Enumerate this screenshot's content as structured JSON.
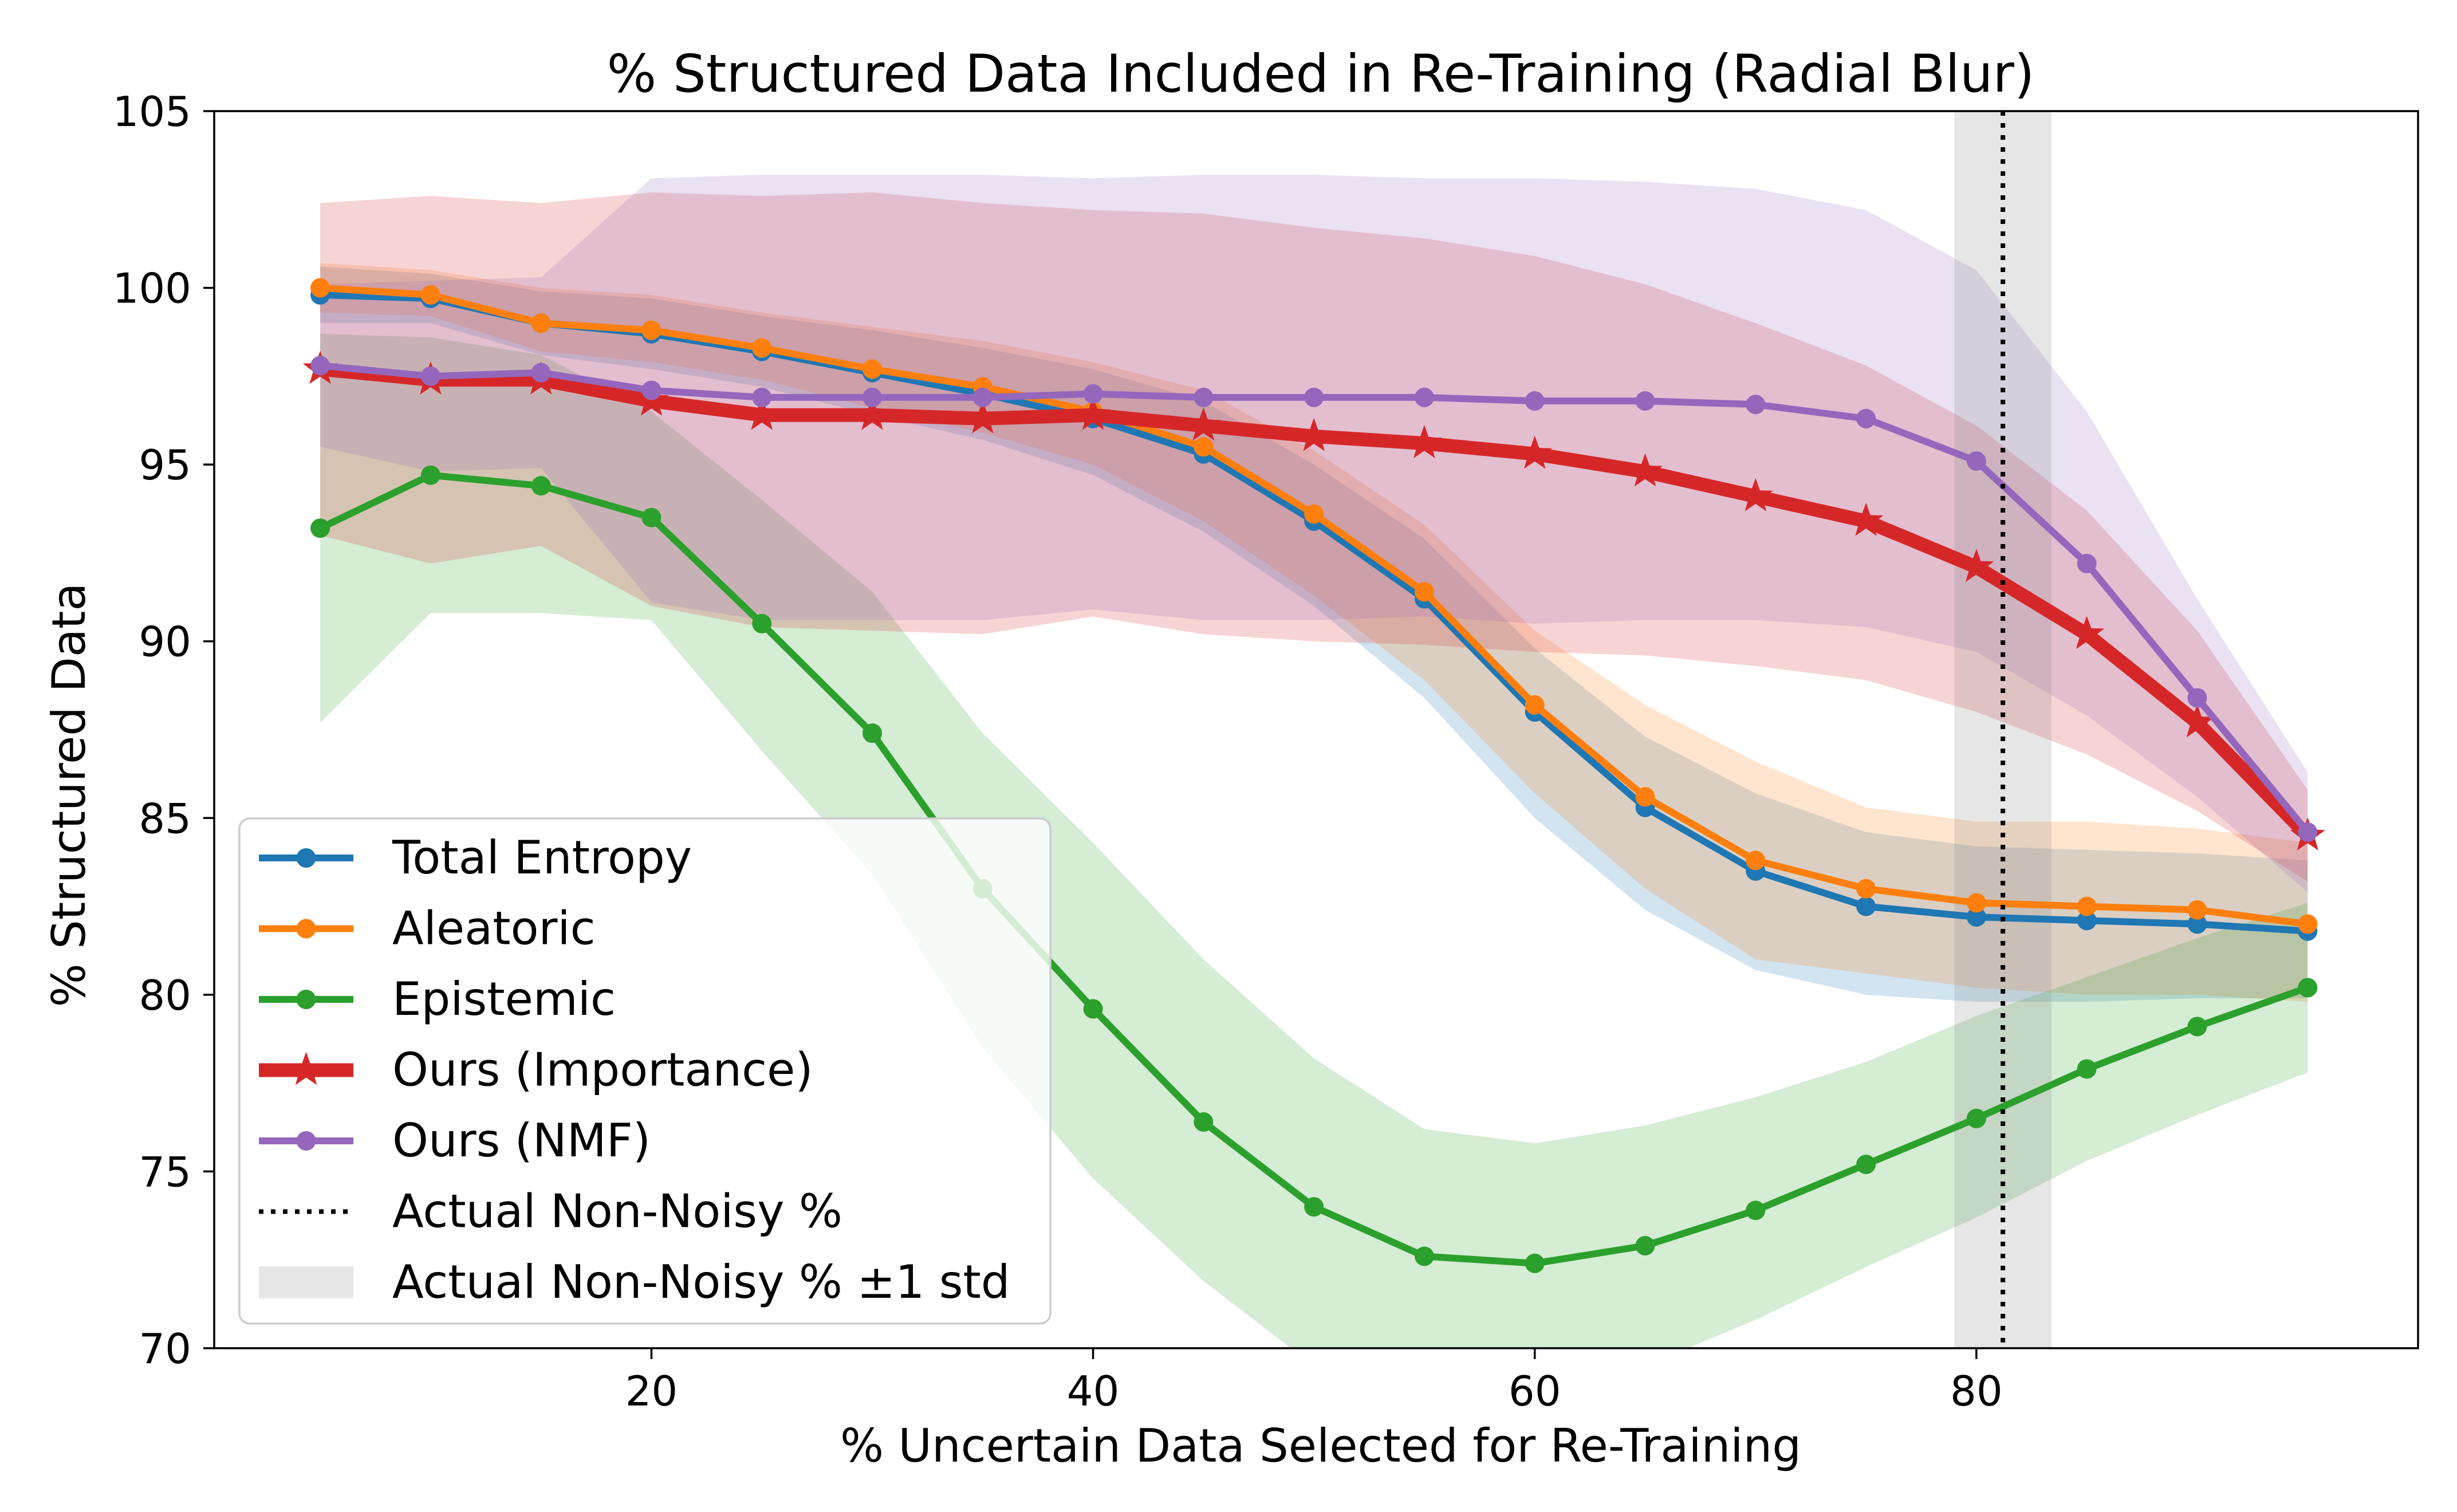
{
  "chart_data": {
    "type": "line",
    "title": "% Structured Data Included in Re-Training (Radial Blur)",
    "xlabel": "% Uncertain Data Selected for Re-Training",
    "ylabel": "% Structured Data",
    "xlim": [
      0.2,
      100.0
    ],
    "ylim": [
      70,
      105
    ],
    "xticks": [
      20,
      40,
      60,
      80
    ],
    "yticks": [
      70,
      75,
      80,
      85,
      90,
      95,
      100,
      105
    ],
    "grid": false,
    "legend_position": "lower-left",
    "x": [
      5,
      10,
      15,
      20,
      25,
      30,
      35,
      40,
      45,
      50,
      55,
      60,
      65,
      70,
      75,
      80,
      85,
      90,
      95
    ],
    "series": [
      {
        "name": "Total Entropy",
        "color": "#1f77b4",
        "marker": "circle",
        "values": [
          99.8,
          99.7,
          99.0,
          98.7,
          98.2,
          97.6,
          97.0,
          96.3,
          95.3,
          93.4,
          91.2,
          88.0,
          85.3,
          83.5,
          82.5,
          82.2,
          82.1,
          82.0,
          81.8
        ],
        "band_upper": [
          100.6,
          100.4,
          99.9,
          99.7,
          99.2,
          98.8,
          98.3,
          97.7,
          96.8,
          95.0,
          92.9,
          89.8,
          87.3,
          85.7,
          84.6,
          84.2,
          84.1,
          84.0,
          83.8
        ],
        "band_lower": [
          99.0,
          99.0,
          98.1,
          97.7,
          97.2,
          96.4,
          95.7,
          94.7,
          93.1,
          91.0,
          88.4,
          85.0,
          82.4,
          80.7,
          80.0,
          79.8,
          79.8,
          79.9,
          79.9
        ]
      },
      {
        "name": "Aleatoric",
        "color": "#ff7f0e",
        "marker": "circle",
        "values": [
          100.0,
          99.8,
          99.0,
          98.8,
          98.3,
          97.7,
          97.2,
          96.5,
          95.5,
          93.6,
          91.4,
          88.2,
          85.6,
          83.8,
          83.0,
          82.6,
          82.5,
          82.4,
          82.0
        ],
        "band_upper": [
          100.7,
          100.5,
          100.0,
          99.8,
          99.3,
          98.9,
          98.5,
          97.9,
          97.1,
          95.4,
          93.3,
          90.3,
          88.2,
          86.6,
          85.3,
          84.9,
          84.9,
          84.7,
          84.3
        ],
        "band_lower": [
          99.3,
          99.2,
          98.2,
          97.9,
          97.4,
          96.6,
          95.9,
          95.0,
          93.4,
          91.3,
          88.9,
          85.7,
          83.0,
          81.0,
          80.6,
          80.2,
          80.0,
          80.0,
          79.8
        ]
      },
      {
        "name": "Epistemic",
        "color": "#2ca02c",
        "marker": "circle",
        "values": [
          93.2,
          94.7,
          94.4,
          93.5,
          90.5,
          87.4,
          83.0,
          79.6,
          76.4,
          74.0,
          72.6,
          72.4,
          72.9,
          73.9,
          75.2,
          76.5,
          77.9,
          79.1,
          80.2
        ],
        "band_upper": [
          98.7,
          98.6,
          98.1,
          96.5,
          94.0,
          91.4,
          87.4,
          84.3,
          81.0,
          78.2,
          76.2,
          75.8,
          76.3,
          77.1,
          78.1,
          79.4,
          80.5,
          81.6,
          82.6
        ],
        "band_lower": [
          87.7,
          90.8,
          90.8,
          90.6,
          86.9,
          83.4,
          78.5,
          74.8,
          71.9,
          69.5,
          69.0,
          68.8,
          69.5,
          70.8,
          72.3,
          73.7,
          75.3,
          76.6,
          77.8
        ]
      },
      {
        "name": "Ours (Importance)",
        "color": "#d62728",
        "marker": "star",
        "values": [
          97.7,
          97.4,
          97.4,
          96.8,
          96.4,
          96.4,
          96.3,
          96.4,
          96.1,
          95.8,
          95.6,
          95.3,
          94.8,
          94.1,
          93.4,
          92.1,
          90.2,
          87.7,
          84.5
        ],
        "band_upper": [
          102.4,
          102.6,
          102.4,
          102.7,
          102.6,
          102.7,
          102.4,
          102.2,
          102.1,
          101.7,
          101.4,
          100.9,
          100.1,
          99.0,
          97.8,
          96.1,
          93.7,
          90.3,
          85.8
        ],
        "band_lower": [
          93.0,
          92.2,
          92.7,
          91.0,
          90.4,
          90.3,
          90.2,
          90.7,
          90.2,
          90.0,
          89.9,
          89.7,
          89.6,
          89.3,
          88.9,
          88.0,
          86.8,
          85.2,
          83.2
        ]
      },
      {
        "name": "Ours (NMF)",
        "color": "#9467bd",
        "marker": "circle",
        "values": [
          97.8,
          97.5,
          97.6,
          97.1,
          96.9,
          96.9,
          96.9,
          97.0,
          96.9,
          96.9,
          96.9,
          96.8,
          96.8,
          96.7,
          96.3,
          95.1,
          92.2,
          88.4,
          84.6
        ],
        "band_upper": [
          100.1,
          100.2,
          100.3,
          103.1,
          103.2,
          103.2,
          103.2,
          103.1,
          103.2,
          103.2,
          103.1,
          103.1,
          103.0,
          102.8,
          102.2,
          100.5,
          96.5,
          91.2,
          86.3
        ],
        "band_lower": [
          95.5,
          94.8,
          94.9,
          91.1,
          90.6,
          90.6,
          90.6,
          90.9,
          90.6,
          90.6,
          90.7,
          90.5,
          90.6,
          90.6,
          90.4,
          89.7,
          87.9,
          85.6,
          82.9
        ]
      }
    ],
    "reference_line": {
      "name": "Actual Non-Noisy %",
      "x": 81.2,
      "style": "dotted",
      "color": "#000000"
    },
    "reference_band": {
      "name": "Actual Non-Noisy % ±1 std",
      "x_low": 79.0,
      "x_high": 83.4,
      "color": "#808080"
    }
  }
}
